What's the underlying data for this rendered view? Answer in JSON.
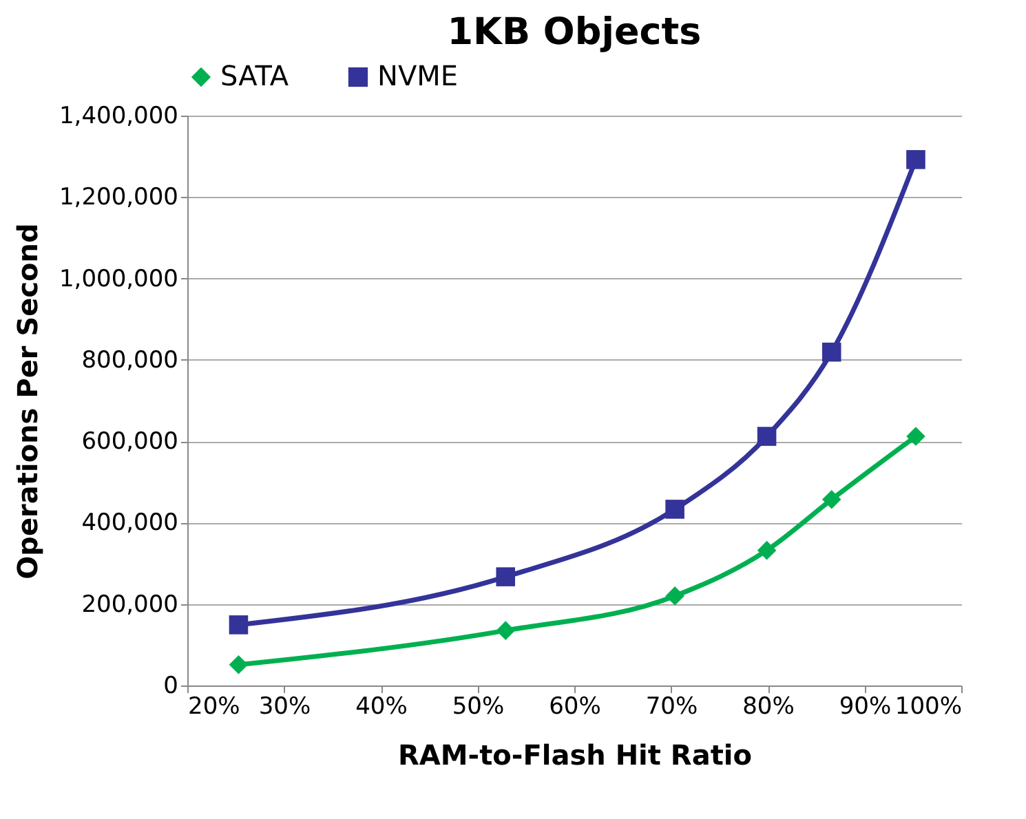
{
  "chart_data": {
    "type": "line",
    "title": "1KB Objects",
    "xlabel": "RAM-to-Flash Hit Ratio",
    "ylabel": "Operations Per Second",
    "xlim": [
      20,
      100
    ],
    "xticks": [
      {
        "value": 20,
        "label": "20%"
      },
      {
        "value": 30,
        "label": "30%"
      },
      {
        "value": 40,
        "label": "40%"
      },
      {
        "value": 50,
        "label": "50%"
      },
      {
        "value": 60,
        "label": "60%"
      },
      {
        "value": 70,
        "label": "70%"
      },
      {
        "value": 80,
        "label": "80%"
      },
      {
        "value": 90,
        "label": "90%"
      },
      {
        "value": 100,
        "label": "100%"
      }
    ],
    "ylim": [
      0,
      1400000
    ],
    "yticks": [
      {
        "value": 0,
        "label": "0"
      },
      {
        "value": 200000,
        "label": "200,000"
      },
      {
        "value": 400000,
        "label": "400,000"
      },
      {
        "value": 600000,
        "label": "600,000"
      },
      {
        "value": 800000,
        "label": "800,000"
      },
      {
        "value": 1000000,
        "label": "1,000,000"
      },
      {
        "value": 1200000,
        "label": "1,200,000"
      },
      {
        "value": 1400000,
        "label": "1,400,000"
      }
    ],
    "x": [
      25.3,
      52.9,
      70.4,
      79.9,
      86.6,
      95.3
    ],
    "series": [
      {
        "name": "SATA",
        "color": "#00b050",
        "marker": "diamond",
        "values": [
          51000,
          135000,
          220000,
          332000,
          457000,
          612000
        ]
      },
      {
        "name": "NVME",
        "color": "#333399",
        "marker": "square",
        "values": [
          149000,
          267000,
          433000,
          612000,
          819000,
          1292000
        ]
      }
    ],
    "grid": "y",
    "legend": "top",
    "line_style": "solid"
  }
}
